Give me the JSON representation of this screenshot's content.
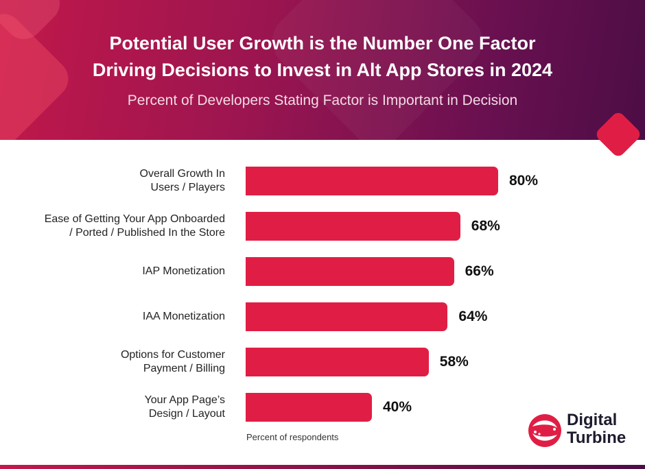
{
  "header": {
    "title_line1": "Potential User Growth is the Number One Factor",
    "title_line2": "Driving Decisions to Invest in Alt App Stores in 2024",
    "subtitle": "Percent of Developers Stating Factor is Important in Decision"
  },
  "chart_data": {
    "type": "bar",
    "orientation": "horizontal",
    "title": "Potential User Growth is the Number One Factor Driving Decisions to Invest in Alt App Stores in 2024",
    "subtitle": "Percent of Developers Stating Factor is Important in Decision",
    "xlabel": "Percent of respondents",
    "ylabel": "",
    "categories": [
      "Overall Growth In\nUsers / Players",
      "Ease of Getting Your App Onboarded\n/ Ported / Published In the Store",
      "IAP Monetization",
      "IAA Monetization",
      "Options for Customer\nPayment / Billing",
      "Your App Page’s\nDesign / Layout"
    ],
    "values": [
      80,
      68,
      66,
      64,
      58,
      40
    ],
    "value_labels": [
      "80%",
      "68%",
      "66%",
      "64%",
      "58%",
      "40%"
    ],
    "xlim": [
      0,
      100
    ],
    "grid": false,
    "legend": "none",
    "bar_color": "#e01e45"
  },
  "logo": {
    "text": "Digital\nTurbine"
  },
  "colors": {
    "accent": "#e01e45",
    "header_start": "#c2184a",
    "header_end": "#4c0d45"
  }
}
